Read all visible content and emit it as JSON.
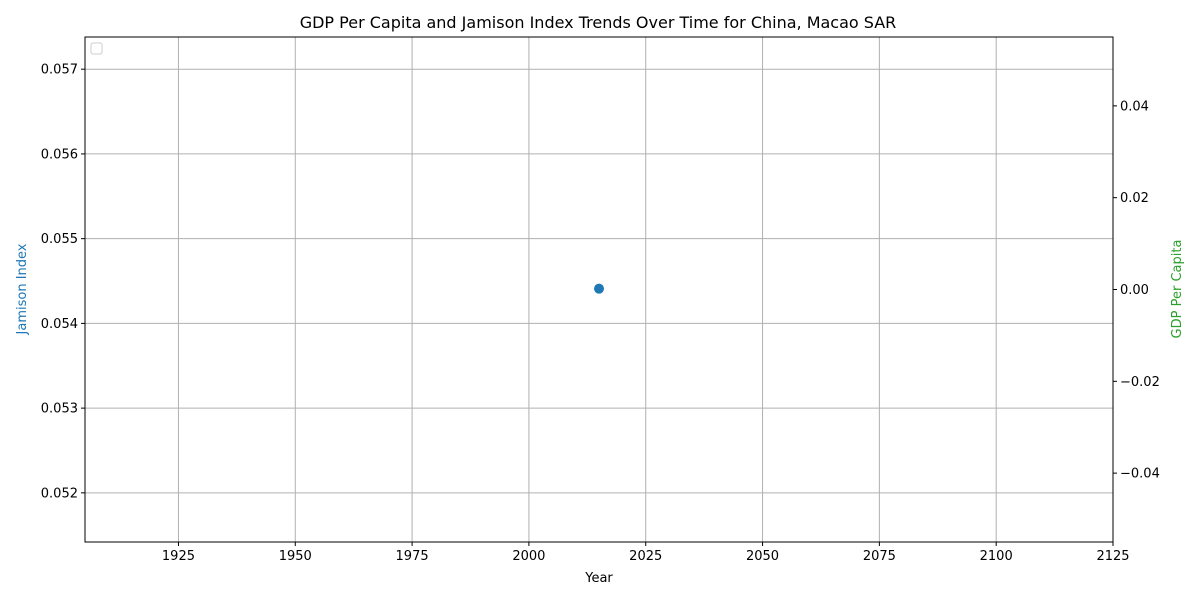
{
  "chart_data": {
    "type": "scatter",
    "title": "GDP Per Capita and Jamison Index Trends Over Time for China, Macao SAR",
    "xlabel": "Year",
    "ylabel_left": "Jamison Index",
    "ylabel_right": "GDP Per Capita",
    "xlim": [
      1905,
      2125
    ],
    "ylim_left": [
      0.05142,
      0.05738
    ],
    "ylim_right": [
      -0.055,
      0.055
    ],
    "x_ticks": [
      1925,
      1950,
      1975,
      2000,
      2025,
      2050,
      2075,
      2100,
      2125
    ],
    "y_left_ticks": [
      0.052,
      0.053,
      0.054,
      0.055,
      0.056,
      0.057
    ],
    "y_left_tick_labels": [
      "0.052",
      "0.053",
      "0.054",
      "0.055",
      "0.056",
      "0.057"
    ],
    "y_right_ticks": [
      -0.04,
      -0.02,
      0.0,
      0.02,
      0.04
    ],
    "y_right_tick_labels": [
      "−0.04",
      "−0.02",
      "0.00",
      "0.02",
      "0.04"
    ],
    "series": [
      {
        "axis": "left",
        "color": "#1f77b4",
        "marker": "circle",
        "points": [
          {
            "x": 2015,
            "y": 0.05441
          }
        ]
      }
    ],
    "grid": true,
    "legend": {
      "placement": "upper-left",
      "entries": []
    },
    "colors": {
      "left_axis_label": "#1f77b4",
      "right_axis_label": "#2ca02c",
      "grid": "#b0b0b0"
    }
  }
}
